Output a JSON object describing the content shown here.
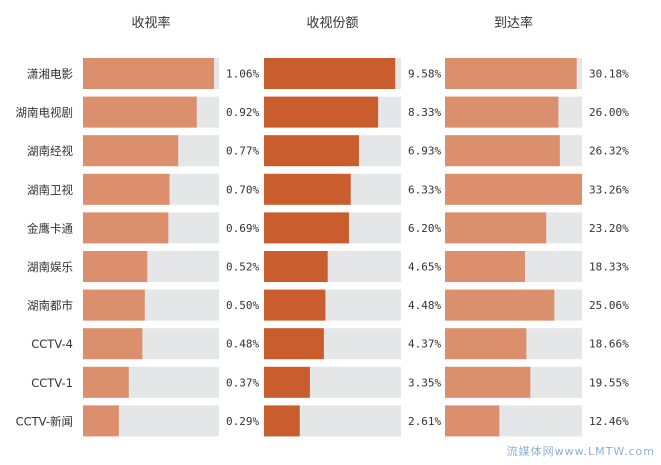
{
  "watermark": "流媒体网www.LMTW.com",
  "colors": {
    "track": "#e5e6e8",
    "light_bar": "#dc8f6c",
    "dark_bar": "#c95d2d",
    "text": "#333333"
  },
  "chart_data": {
    "type": "bar",
    "orientation": "horizontal",
    "categories": [
      "潇湘电影",
      "湖南电视剧",
      "湖南经视",
      "湖南卫视",
      "金鹰卡通",
      "湖南娱乐",
      "湖南都市",
      "CCTV-4",
      "CCTV-1",
      "CCTV-新闻"
    ],
    "series": [
      {
        "name": "收视率",
        "values": [
          1.06,
          0.92,
          0.77,
          0.7,
          0.69,
          0.52,
          0.5,
          0.48,
          0.37,
          0.29
        ],
        "labels": [
          "1.06%",
          "0.92%",
          "0.77%",
          "0.70%",
          "0.69%",
          "0.52%",
          "0.50%",
          "0.48%",
          "0.37%",
          "0.29%"
        ],
        "max": 1.1,
        "color": "#dc8f6c"
      },
      {
        "name": "收视份额",
        "values": [
          9.58,
          8.33,
          6.93,
          6.33,
          6.2,
          4.65,
          4.48,
          4.37,
          3.35,
          2.61
        ],
        "labels": [
          "9.58%",
          "8.33%",
          "6.93%",
          "6.33%",
          "6.20%",
          "4.65%",
          "4.48%",
          "4.37%",
          "3.35%",
          "2.61%"
        ],
        "max": 10.0,
        "color": "#c95d2d"
      },
      {
        "name": "到达率",
        "values": [
          30.18,
          26.0,
          26.32,
          33.26,
          23.2,
          18.33,
          25.06,
          18.66,
          19.55,
          12.46
        ],
        "labels": [
          "30.18%",
          "26.00%",
          "26.32%",
          "33.26%",
          "23.20%",
          "18.33%",
          "25.06%",
          "18.66%",
          "19.55%",
          "12.46%"
        ],
        "max": 31.4,
        "color": "#dc8f6c"
      }
    ],
    "legend": "none",
    "grid": false
  }
}
